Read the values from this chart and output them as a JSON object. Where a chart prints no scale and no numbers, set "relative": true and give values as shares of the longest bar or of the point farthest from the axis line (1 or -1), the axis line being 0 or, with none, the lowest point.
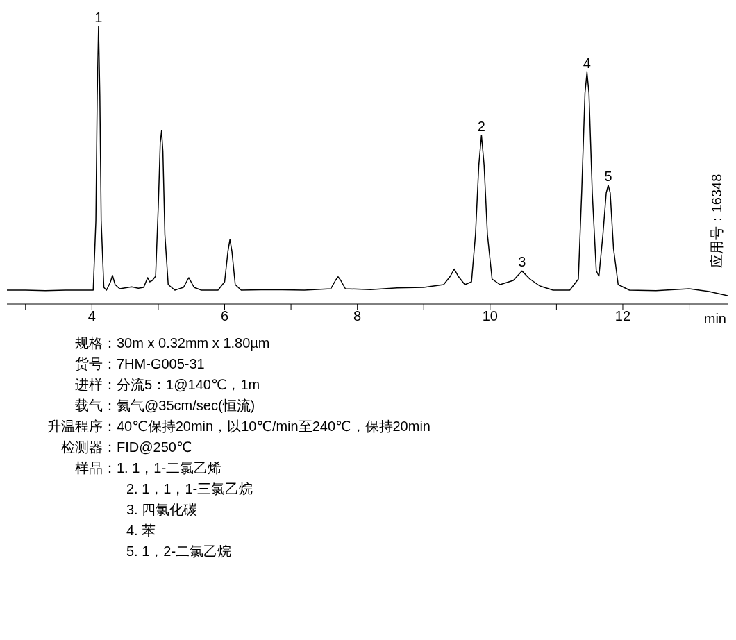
{
  "chart_data": {
    "type": "line",
    "relative": true,
    "xlabel": "min",
    "xlim": [
      2.72,
      13.58
    ],
    "xticks": [
      {
        "value": 3,
        "label": null
      },
      4,
      {
        "value": 5,
        "label": null
      },
      6,
      {
        "value": 7,
        "label": null
      },
      8,
      {
        "value": 9,
        "label": null
      },
      10,
      {
        "value": 11,
        "label": null
      },
      12,
      {
        "value": 13,
        "label": null
      }
    ],
    "grid": false,
    "legend": false,
    "marker": "none",
    "line_style": "solid",
    "x": [
      2.72,
      3.0,
      3.3,
      3.6,
      3.9,
      4.02,
      4.06,
      4.08,
      4.1,
      4.12,
      4.14,
      4.18,
      4.22,
      4.28,
      4.31,
      4.35,
      4.42,
      4.5,
      4.6,
      4.7,
      4.78,
      4.84,
      4.87,
      4.91,
      4.96,
      5.0,
      5.03,
      5.05,
      5.07,
      5.1,
      5.15,
      5.25,
      5.38,
      5.46,
      5.54,
      5.65,
      5.9,
      6.0,
      6.05,
      6.08,
      6.11,
      6.16,
      6.25,
      6.7,
      7.2,
      7.6,
      7.67,
      7.71,
      7.75,
      7.82,
      8.2,
      8.6,
      9.0,
      9.3,
      9.4,
      9.46,
      9.52,
      9.62,
      9.72,
      9.78,
      9.83,
      9.87,
      9.91,
      9.96,
      10.03,
      10.15,
      10.35,
      10.48,
      10.6,
      10.75,
      10.95,
      11.2,
      11.33,
      11.38,
      11.43,
      11.46,
      11.49,
      11.54,
      11.6,
      11.64,
      11.7,
      11.75,
      11.78,
      11.81,
      11.86,
      11.93,
      12.1,
      12.5,
      13.0,
      13.3,
      13.58
    ],
    "series": [
      {
        "color": "#000000",
        "values": [
          0.05,
          0.05,
          0.048,
          0.05,
          0.05,
          0.05,
          0.3,
          0.75,
          1.0,
          0.75,
          0.3,
          0.06,
          0.05,
          0.08,
          0.103,
          0.07,
          0.055,
          0.058,
          0.062,
          0.057,
          0.06,
          0.095,
          0.08,
          0.085,
          0.1,
          0.35,
          0.58,
          0.624,
          0.55,
          0.25,
          0.07,
          0.05,
          0.06,
          0.095,
          0.06,
          0.05,
          0.05,
          0.08,
          0.19,
          0.232,
          0.19,
          0.07,
          0.05,
          0.052,
          0.05,
          0.055,
          0.085,
          0.098,
          0.085,
          0.055,
          0.052,
          0.058,
          0.06,
          0.07,
          0.1,
          0.126,
          0.1,
          0.07,
          0.08,
          0.25,
          0.5,
          0.608,
          0.5,
          0.25,
          0.09,
          0.07,
          0.085,
          0.119,
          0.09,
          0.065,
          0.05,
          0.05,
          0.09,
          0.4,
          0.76,
          0.835,
          0.76,
          0.4,
          0.12,
          0.1,
          0.25,
          0.4,
          0.428,
          0.4,
          0.2,
          0.07,
          0.05,
          0.048,
          0.055,
          0.045,
          0.03
        ]
      }
    ],
    "annotations": [
      {
        "text": "1",
        "x": 4.1,
        "y": 1.0
      },
      {
        "text": "2",
        "x": 9.87,
        "y": 0.608
      },
      {
        "text": "3",
        "x": 10.48,
        "y": 0.119
      },
      {
        "text": "4",
        "x": 11.46,
        "y": 0.835
      },
      {
        "text": "5",
        "x": 11.78,
        "y": 0.428
      },
      "应用号：16348",
      "规格：30m x 0.32mm x 1.80µm",
      "货号：7HM-G005-31",
      "进样：分流5：1@140℃，1m",
      "载气：氦气@35cm/sec(恒流)",
      "升温程序：40℃保持20min，以10℃/min至240℃，保持20min",
      "检测器：FID@250℃",
      "样品：1. 1，1-二氯乙烯",
      "2. 1，1，1-三氯乙烷",
      "3. 四氯化碳",
      "4. 苯",
      "5. 1，2-二氯乙烷"
    ]
  }
}
